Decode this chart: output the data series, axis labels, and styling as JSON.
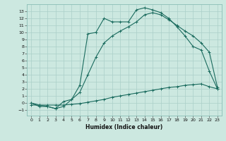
{
  "xlabel": "Humidex (Indice chaleur)",
  "xlim": [
    -0.5,
    23.5
  ],
  "ylim": [
    -1.8,
    14.0
  ],
  "xticks": [
    0,
    1,
    2,
    3,
    4,
    5,
    6,
    7,
    8,
    9,
    10,
    11,
    12,
    13,
    14,
    15,
    16,
    17,
    18,
    19,
    20,
    21,
    22,
    23
  ],
  "yticks": [
    -1,
    0,
    1,
    2,
    3,
    4,
    5,
    6,
    7,
    8,
    9,
    10,
    11,
    12,
    13
  ],
  "bg_color": "#cce8e0",
  "grid_color": "#aacfc8",
  "line_color": "#1a6b5e",
  "line1_x": [
    0,
    1,
    2,
    3,
    4,
    5,
    6,
    7,
    8,
    9,
    10,
    11,
    12,
    13,
    14,
    15,
    16,
    17,
    18,
    19,
    20,
    21,
    22,
    23
  ],
  "line1_y": [
    0,
    -0.5,
    -0.5,
    -0.8,
    0.2,
    0.5,
    2.5,
    9.8,
    10.0,
    12.0,
    11.5,
    11.5,
    11.5,
    13.2,
    13.5,
    13.2,
    12.8,
    12.0,
    10.8,
    9.5,
    8.0,
    7.5,
    4.5,
    2.0
  ],
  "line2_x": [
    0,
    1,
    2,
    3,
    4,
    5,
    6,
    7,
    8,
    9,
    10,
    11,
    12,
    13,
    14,
    15,
    16,
    17,
    18,
    19,
    20,
    21,
    22,
    23
  ],
  "line2_y": [
    0,
    -0.3,
    -0.5,
    -0.8,
    -0.5,
    0.5,
    1.5,
    4.0,
    6.5,
    8.5,
    9.5,
    10.2,
    10.8,
    11.5,
    12.5,
    12.8,
    12.5,
    11.8,
    11.0,
    10.2,
    9.5,
    8.5,
    7.2,
    2.2
  ],
  "line3_x": [
    0,
    1,
    2,
    3,
    4,
    5,
    6,
    7,
    8,
    9,
    10,
    11,
    12,
    13,
    14,
    15,
    16,
    17,
    18,
    19,
    20,
    21,
    22,
    23
  ],
  "line3_y": [
    -0.3,
    -0.3,
    -0.3,
    -0.3,
    -0.3,
    -0.2,
    -0.1,
    0.1,
    0.3,
    0.5,
    0.8,
    1.0,
    1.2,
    1.4,
    1.6,
    1.8,
    2.0,
    2.2,
    2.3,
    2.5,
    2.6,
    2.7,
    2.3,
    2.0
  ],
  "marker": "+",
  "markersize": 3,
  "linewidth": 0.8,
  "tick_fontsize": 4.5,
  "xlabel_fontsize": 5.5
}
